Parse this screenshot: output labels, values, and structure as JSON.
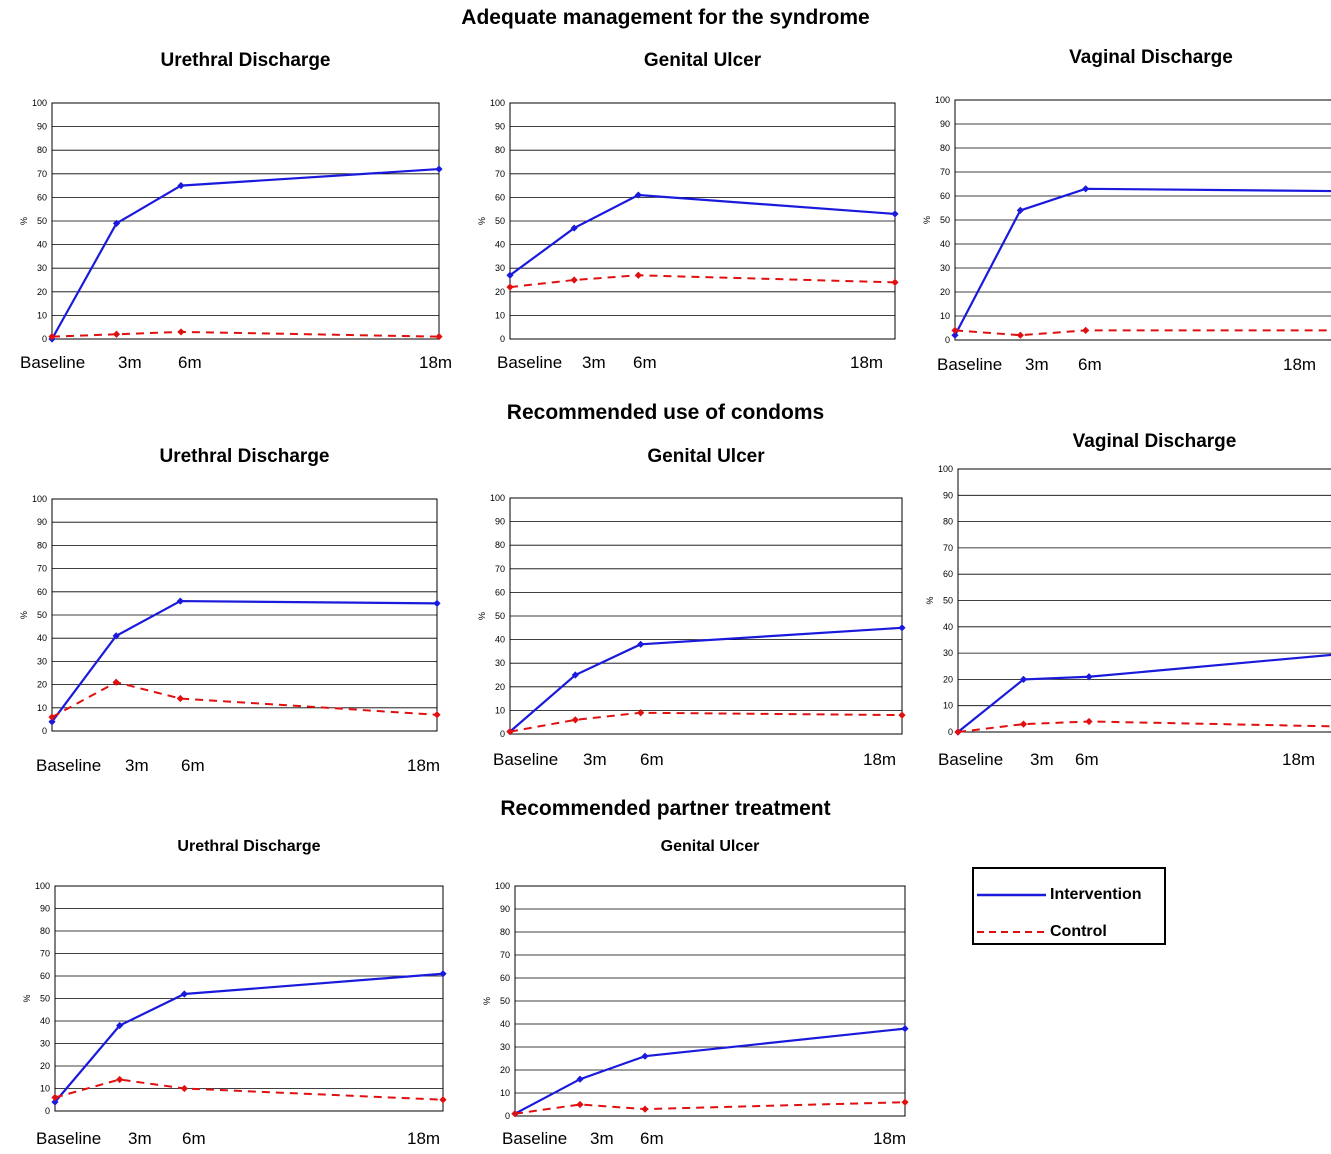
{
  "sections": [
    {
      "title": "Adequate management for the syndrome"
    },
    {
      "title": "Recommended use of condoms"
    },
    {
      "title": "Recommended partner treatment"
    }
  ],
  "legend": {
    "items": [
      {
        "name": "Intervention",
        "color": "#1a1adc",
        "style": "solid"
      },
      {
        "name": "Control",
        "color": "#e01010",
        "style": "dashed"
      }
    ]
  },
  "chart_data": [
    {
      "type": "line",
      "title": "Urethral Discharge",
      "ylabel": "%",
      "ylim": [
        0,
        100
      ],
      "grid": true,
      "x": [
        "Baseline",
        "3m",
        "6m",
        "18m"
      ],
      "x_months": [
        0,
        3,
        6,
        18
      ],
      "series": [
        {
          "name": "Intervention",
          "values": [
            0,
            49,
            65,
            72
          ]
        },
        {
          "name": "Control",
          "values": [
            1,
            2,
            3,
            1
          ]
        }
      ]
    },
    {
      "type": "line",
      "title": "Genital Ulcer",
      "ylabel": "%",
      "ylim": [
        0,
        100
      ],
      "grid": true,
      "x": [
        "Baseline",
        "3m",
        "6m",
        "18m"
      ],
      "x_months": [
        0,
        3,
        6,
        18
      ],
      "series": [
        {
          "name": "Intervention",
          "values": [
            27,
            47,
            61,
            53
          ]
        },
        {
          "name": "Control",
          "values": [
            22,
            25,
            27,
            24
          ]
        }
      ]
    },
    {
      "type": "line",
      "title": "Vaginal Discharge",
      "ylabel": "%",
      "ylim": [
        0,
        100
      ],
      "grid": true,
      "x": [
        "Baseline",
        "3m",
        "6m",
        "18m"
      ],
      "x_months": [
        0,
        3,
        6,
        18
      ],
      "series": [
        {
          "name": "Intervention",
          "values": [
            2,
            54,
            63,
            62
          ]
        },
        {
          "name": "Control",
          "values": [
            4,
            2,
            4,
            4
          ]
        }
      ]
    },
    {
      "type": "line",
      "title": "Urethral Discharge",
      "ylabel": "%",
      "ylim": [
        0,
        100
      ],
      "grid": true,
      "x": [
        "Baseline",
        "3m",
        "6m",
        "18m"
      ],
      "x_months": [
        0,
        3,
        6,
        18
      ],
      "series": [
        {
          "name": "Intervention",
          "values": [
            4,
            41,
            56,
            55
          ]
        },
        {
          "name": "Control",
          "values": [
            6,
            21,
            14,
            7
          ]
        }
      ]
    },
    {
      "type": "line",
      "title": "Genital Ulcer",
      "ylabel": "%",
      "ylim": [
        0,
        100
      ],
      "grid": true,
      "x": [
        "Baseline",
        "3m",
        "6m",
        "18m"
      ],
      "x_months": [
        0,
        3,
        6,
        18
      ],
      "series": [
        {
          "name": "Intervention",
          "values": [
            1,
            25,
            38,
            45
          ]
        },
        {
          "name": "Control",
          "values": [
            1,
            6,
            9,
            8
          ]
        }
      ]
    },
    {
      "type": "line",
      "title": "Vaginal Discharge",
      "ylabel": "%",
      "ylim": [
        0,
        100
      ],
      "grid": true,
      "x": [
        "Baseline",
        "3m",
        "6m",
        "18m"
      ],
      "x_months": [
        0,
        3,
        6,
        18
      ],
      "series": [
        {
          "name": "Intervention",
          "values": [
            0,
            20,
            21,
            30
          ]
        },
        {
          "name": "Control",
          "values": [
            0,
            3,
            4,
            2
          ]
        }
      ]
    },
    {
      "type": "line",
      "title": "Urethral Discharge",
      "ylabel": "%",
      "ylim": [
        0,
        100
      ],
      "grid": true,
      "x": [
        "Baseline",
        "3m",
        "6m",
        "18m"
      ],
      "x_months": [
        0,
        3,
        6,
        18
      ],
      "series": [
        {
          "name": "Intervention",
          "values": [
            4,
            38,
            52,
            61
          ]
        },
        {
          "name": "Control",
          "values": [
            6,
            14,
            10,
            5
          ]
        }
      ]
    },
    {
      "type": "line",
      "title": "Genital Ulcer",
      "ylabel": "%",
      "ylim": [
        0,
        100
      ],
      "grid": true,
      "x": [
        "Baseline",
        "3m",
        "6m",
        "18m"
      ],
      "x_months": [
        0,
        3,
        6,
        18
      ],
      "series": [
        {
          "name": "Intervention",
          "values": [
            1,
            16,
            26,
            38
          ]
        },
        {
          "name": "Control",
          "values": [
            1,
            5,
            3,
            6
          ]
        }
      ]
    }
  ]
}
